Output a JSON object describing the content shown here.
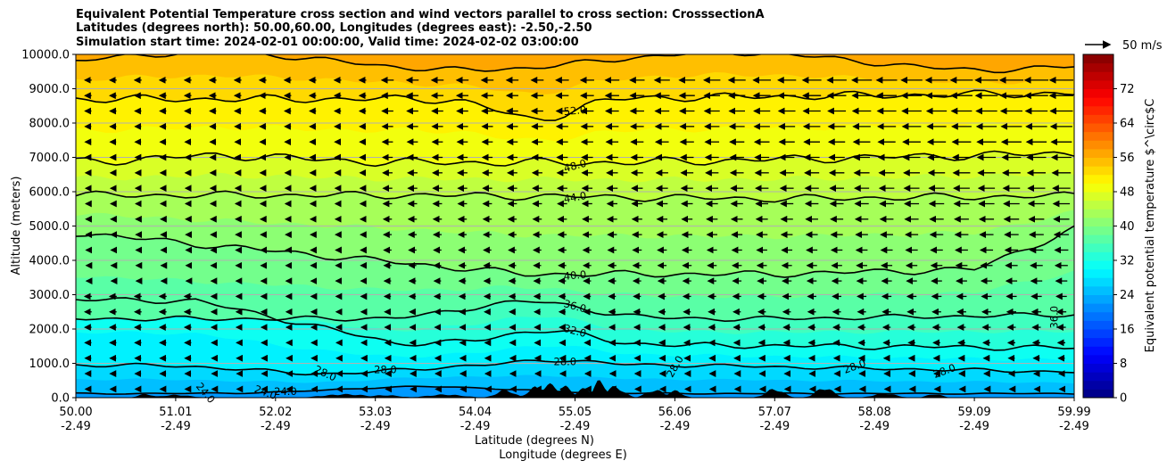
{
  "title": {
    "line1": "Equivalent Potential Temperature cross section and wind vectors parallel to cross section: CrosssectionA",
    "line2": "Latitudes (degrees north): 50.00,60.00, Longitudes (degrees east): -2.50,-2.50",
    "line3": "Simulation start time: 2024-02-01 00:00:00, Valid time: 2024-02-02 03:00:00"
  },
  "chart_data": {
    "type": "contourf",
    "title": "Equivalent Potential Temperature cross section and wind vectors parallel to cross section: CrosssectionA",
    "ylabel": "Altitude (meters)",
    "xlabel_lat": "Latitude (degrees N)",
    "xlabel_lon": "Longitude (degrees E)",
    "ylim": [
      0,
      10000
    ],
    "xlim": [
      50.0,
      59.99
    ],
    "y_ticks": [
      "0.0",
      "1000.0",
      "2000.0",
      "3000.0",
      "4000.0",
      "5000.0",
      "6000.0",
      "7000.0",
      "8000.0",
      "9000.0",
      "10000.0"
    ],
    "x_ticks_lat": [
      "50.00",
      "51.01",
      "52.02",
      "53.03",
      "54.04",
      "55.05",
      "56.06",
      "57.07",
      "58.08",
      "59.09",
      "59.99"
    ],
    "x_ticks_lon": [
      "-2.49",
      "-2.49",
      "-2.49",
      "-2.49",
      "-2.49",
      "-2.49",
      "-2.49",
      "-2.49",
      "-2.49",
      "-2.49",
      "-2.49"
    ],
    "grid": "horizontal",
    "colorbar": {
      "label": "Equivalent potential temperature $^\\circ$C",
      "min": 0,
      "max": 80,
      "ticks": [
        "0",
        "8",
        "16",
        "24",
        "32",
        "40",
        "48",
        "56",
        "64",
        "72"
      ]
    },
    "contour_levels": [
      24,
      28,
      32,
      36,
      40,
      44,
      48,
      52
    ],
    "contour_labels": [
      {
        "text": "52.0"
      },
      {
        "text": "48.0"
      },
      {
        "text": "44.0"
      },
      {
        "text": "40.0"
      },
      {
        "text": "36.0"
      },
      {
        "text": "32.0"
      },
      {
        "text": "28.0"
      },
      {
        "text": "28.0"
      },
      {
        "text": "28.0"
      },
      {
        "text": "28.0"
      },
      {
        "text": "28.0"
      },
      {
        "text": "28.0"
      },
      {
        "text": "24.0"
      },
      {
        "text": "24.0"
      },
      {
        "text": "24.0"
      },
      {
        "text": "36.0"
      }
    ],
    "quiver_key": {
      "label": "50 m/s",
      "speed": 50
    },
    "wind": "predominantly from the north (vectors pointing left), stronger aloft and at higher latitudes"
  }
}
